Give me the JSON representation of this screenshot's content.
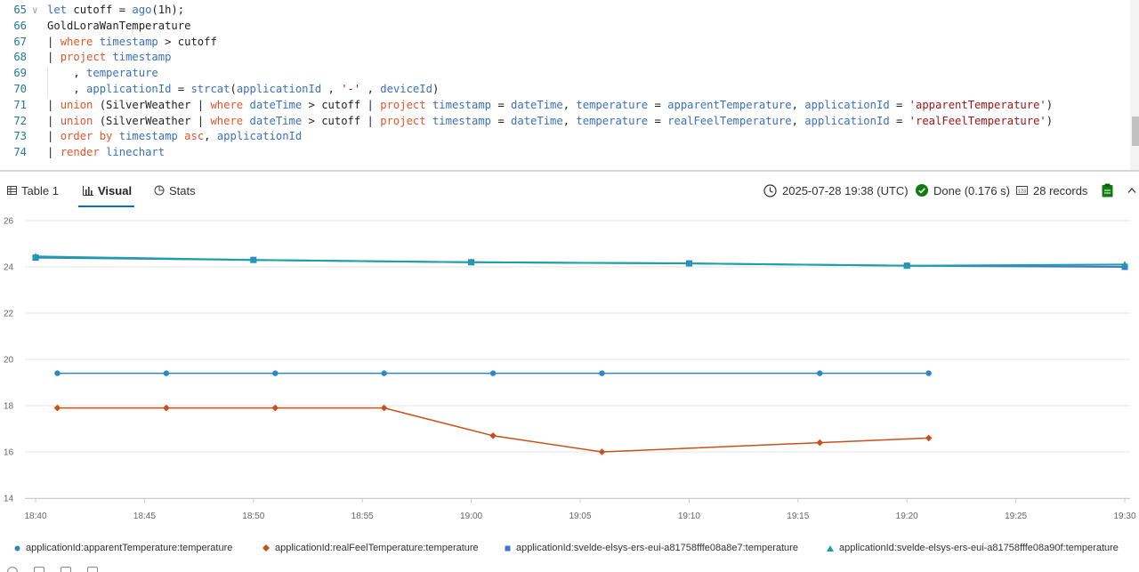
{
  "editor": {
    "lines": [
      {
        "n": "65",
        "tokens": [
          [
            "kw2",
            "let"
          ],
          [
            "op",
            " cutoff = "
          ],
          [
            "bl",
            "ago"
          ],
          [
            "op",
            "(1h);"
          ]
        ]
      },
      {
        "n": "66",
        "tokens": [
          [
            "tx",
            "GoldLoraWanTemperature"
          ]
        ]
      },
      {
        "n": "67",
        "tokens": [
          [
            "op",
            "| "
          ],
          [
            "kw",
            "where"
          ],
          [
            "op",
            " "
          ],
          [
            "bl",
            "timestamp"
          ],
          [
            "op",
            " > cutoff"
          ]
        ]
      },
      {
        "n": "68",
        "tokens": [
          [
            "op",
            "| "
          ],
          [
            "kw",
            "project"
          ],
          [
            "op",
            " "
          ],
          [
            "bl",
            "timestamp"
          ]
        ]
      },
      {
        "n": "69",
        "tokens": [
          [
            "op",
            "    , "
          ],
          [
            "bl",
            "temperature"
          ]
        ]
      },
      {
        "n": "70",
        "tokens": [
          [
            "op",
            "    , "
          ],
          [
            "bl",
            "applicationId"
          ],
          [
            "op",
            " = "
          ],
          [
            "bl",
            "strcat"
          ],
          [
            "op",
            "("
          ],
          [
            "bl",
            "applicationId"
          ],
          [
            "op",
            " , "
          ],
          [
            "st",
            "'-'"
          ],
          [
            "op",
            " , "
          ],
          [
            "bl",
            "deviceId"
          ],
          [
            "op",
            ")"
          ]
        ]
      },
      {
        "n": "71",
        "tokens": [
          [
            "op",
            "| "
          ],
          [
            "kw",
            "union"
          ],
          [
            "op",
            " (SilverWeather | "
          ],
          [
            "kw",
            "where"
          ],
          [
            "op",
            " "
          ],
          [
            "bl",
            "dateTime"
          ],
          [
            "op",
            " > cutoff | "
          ],
          [
            "kw",
            "project"
          ],
          [
            "op",
            " "
          ],
          [
            "bl",
            "timestamp"
          ],
          [
            "op",
            " = "
          ],
          [
            "bl",
            "dateTime"
          ],
          [
            "op",
            ", "
          ],
          [
            "bl",
            "temperature"
          ],
          [
            "op",
            " = "
          ],
          [
            "bl",
            "apparentTemperature"
          ],
          [
            "op",
            ", "
          ],
          [
            "bl",
            "applicationId"
          ],
          [
            "op",
            " = "
          ],
          [
            "st",
            "'apparentTemperature'"
          ],
          [
            "op",
            ")"
          ]
        ]
      },
      {
        "n": "72",
        "tokens": [
          [
            "op",
            "| "
          ],
          [
            "kw",
            "union"
          ],
          [
            "op",
            " (SilverWeather | "
          ],
          [
            "kw",
            "where"
          ],
          [
            "op",
            " "
          ],
          [
            "bl",
            "dateTime"
          ],
          [
            "op",
            " > cutoff | "
          ],
          [
            "kw",
            "project"
          ],
          [
            "op",
            " "
          ],
          [
            "bl",
            "timestamp"
          ],
          [
            "op",
            " = "
          ],
          [
            "bl",
            "dateTime"
          ],
          [
            "op",
            ", "
          ],
          [
            "bl",
            "temperature"
          ],
          [
            "op",
            " = "
          ],
          [
            "bl",
            "realFeelTemperature"
          ],
          [
            "op",
            ", "
          ],
          [
            "bl",
            "applicationId"
          ],
          [
            "op",
            " = "
          ],
          [
            "st",
            "'realFeelTemperature'"
          ],
          [
            "op",
            ")"
          ]
        ]
      },
      {
        "n": "73",
        "tokens": [
          [
            "op",
            "| "
          ],
          [
            "kw",
            "order"
          ],
          [
            "op",
            " "
          ],
          [
            "kw",
            "by"
          ],
          [
            "op",
            " "
          ],
          [
            "bl",
            "timestamp"
          ],
          [
            "op",
            " "
          ],
          [
            "kw",
            "asc"
          ],
          [
            "op",
            ", "
          ],
          [
            "bl",
            "applicationId"
          ]
        ]
      },
      {
        "n": "74",
        "tokens": [
          [
            "op",
            "| "
          ],
          [
            "kw",
            "render"
          ],
          [
            "op",
            " "
          ],
          [
            "bl",
            "linechart"
          ]
        ]
      }
    ]
  },
  "tabs": [
    {
      "label": "Table 1",
      "icon": "table-icon",
      "active": false
    },
    {
      "label": "Visual",
      "icon": "chart-icon",
      "active": true
    },
    {
      "label": "Stats",
      "icon": "stats-icon",
      "active": false
    }
  ],
  "status": {
    "timestamp": "2025-07-28 19:38 (UTC)",
    "done": "Done (0.176 s)",
    "records": "28 records",
    "done_color": "#107c10"
  },
  "chart_data": {
    "type": "line",
    "x_ticks": [
      "18:40",
      "18:45",
      "18:50",
      "18:55",
      "19:00",
      "19:05",
      "19:10",
      "19:15",
      "19:20",
      "19:25",
      "19:30"
    ],
    "xlim": [
      "18:40",
      "19:30"
    ],
    "ylim": [
      14,
      26
    ],
    "y_ticks": [
      14,
      16,
      18,
      20,
      22,
      24,
      26
    ],
    "grid": "horizontal",
    "legend_position": "bottom",
    "series": [
      {
        "name": "applicationId:apparentTemperature:temperature",
        "color": "#2f86c0",
        "marker": "circle",
        "points": [
          [
            "18:41",
            19.4
          ],
          [
            "18:46",
            19.4
          ],
          [
            "18:51",
            19.4
          ],
          [
            "18:56",
            19.4
          ],
          [
            "19:01",
            19.4
          ],
          [
            "19:06",
            19.4
          ],
          [
            "19:16",
            19.4
          ],
          [
            "19:21",
            19.4
          ]
        ]
      },
      {
        "name": "applicationId:realFeelTemperature:temperature",
        "color": "#c8511a",
        "marker": "diamond",
        "points": [
          [
            "18:41",
            17.9
          ],
          [
            "18:46",
            17.9
          ],
          [
            "18:51",
            17.9
          ],
          [
            "18:56",
            17.9
          ],
          [
            "19:01",
            16.7
          ],
          [
            "19:06",
            16.0
          ],
          [
            "19:16",
            16.4
          ],
          [
            "19:21",
            16.6
          ]
        ]
      },
      {
        "name": "applicationId:svelde-elsys-ers-eui-a81758fffe08a8e7:temperature",
        "color": "#3c78d8",
        "marker": "square",
        "points": [
          [
            "18:40",
            24.4
          ],
          [
            "18:50",
            24.3
          ],
          [
            "19:00",
            24.2
          ],
          [
            "19:10",
            24.15
          ],
          [
            "19:20",
            24.05
          ],
          [
            "19:30",
            24.0
          ]
        ]
      },
      {
        "name": "applicationId:svelde-elsys-ers-eui-a81758fffe08a90f:temperature",
        "color": "#1aa3a3",
        "marker": "triangle",
        "points": [
          [
            "18:40",
            24.45
          ],
          [
            "18:50",
            24.3
          ],
          [
            "19:00",
            24.2
          ],
          [
            "19:10",
            24.15
          ],
          [
            "19:20",
            24.05
          ],
          [
            "19:30",
            24.1
          ]
        ]
      }
    ]
  }
}
